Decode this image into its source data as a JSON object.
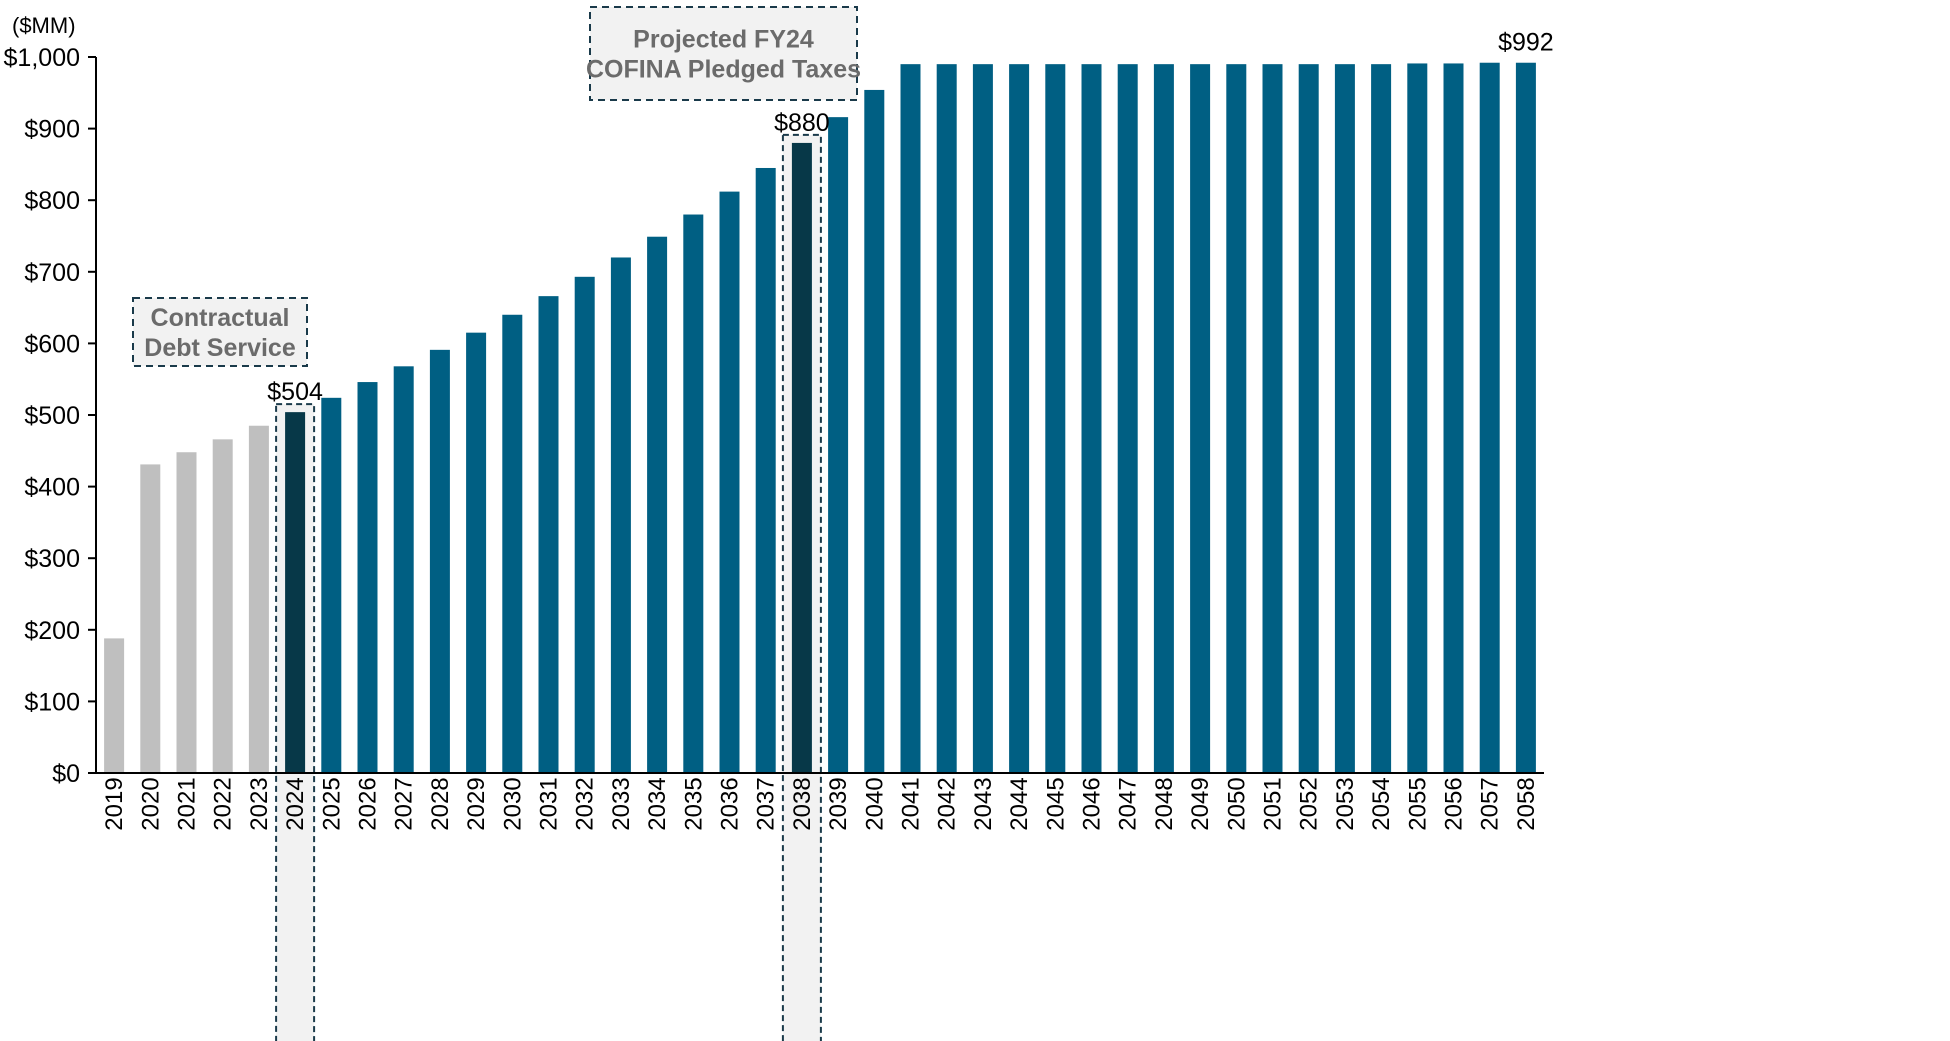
{
  "chart_data": {
    "type": "bar",
    "unit_label": "($MM)",
    "categories": [
      "2019",
      "2020",
      "2021",
      "2022",
      "2023",
      "2024",
      "2025",
      "2026",
      "2027",
      "2028",
      "2029",
      "2030",
      "2031",
      "2032",
      "2033",
      "2034",
      "2035",
      "2036",
      "2037",
      "2038",
      "2039",
      "2040",
      "2041",
      "2042",
      "2043",
      "2044",
      "2045",
      "2046",
      "2047",
      "2048",
      "2049",
      "2050",
      "2051",
      "2052",
      "2053",
      "2054",
      "2055",
      "2056",
      "2057",
      "2058"
    ],
    "values": [
      188,
      431,
      448,
      466,
      485,
      504,
      524,
      546,
      568,
      591,
      615,
      640,
      666,
      693,
      720,
      749,
      780,
      812,
      845,
      880,
      916,
      954,
      990,
      990,
      990,
      990,
      990,
      990,
      990,
      990,
      990,
      990,
      990,
      990,
      990,
      990,
      991,
      991,
      992,
      992
    ],
    "ylim": [
      0,
      1000
    ],
    "yticks": [
      0,
      100,
      200,
      300,
      400,
      500,
      600,
      700,
      800,
      900,
      1000
    ],
    "ytick_labels": [
      "$0",
      "$100",
      "$200",
      "$300",
      "$400",
      "$500",
      "$600",
      "$700",
      "$800",
      "$900",
      "$1,000"
    ],
    "highlighted_categories": [
      "2024",
      "2038"
    ],
    "grey_categories": [
      "2019",
      "2020",
      "2021",
      "2022",
      "2023"
    ],
    "data_labels": [
      {
        "category": "2024",
        "text": "$504"
      },
      {
        "category": "2038",
        "text": "$880"
      },
      {
        "category": "2058",
        "text": "$992"
      }
    ],
    "annotations": [
      {
        "id": "contractual",
        "lines": [
          "Contractual",
          "Debt Service"
        ]
      },
      {
        "id": "projected",
        "lines": [
          "Projected FY24",
          "COFINA Pledged Taxes"
        ]
      }
    ],
    "grid": false,
    "legend": "none",
    "colors": {
      "historical": "#bfbfbf",
      "projected": "#005f83",
      "highlight": "#073848",
      "axis": "#000000",
      "callout_border": "#1a3a4a",
      "callout_fill": "#f2f2f2",
      "callout_text": "#6b6b6b"
    }
  }
}
